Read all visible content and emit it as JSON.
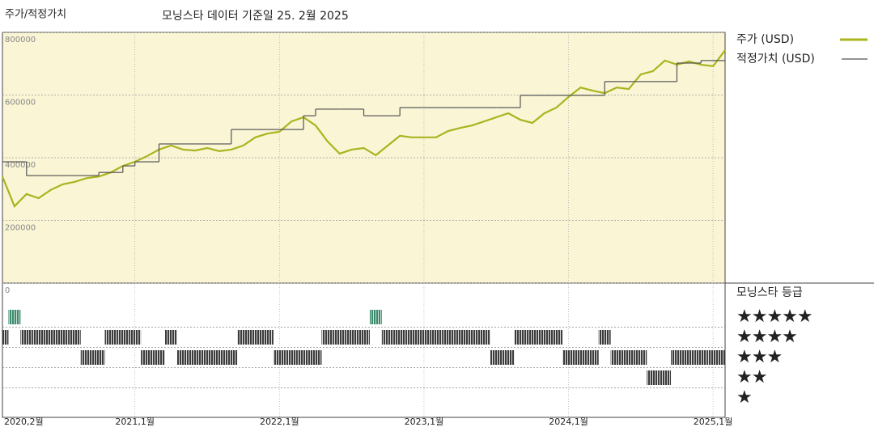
{
  "chart_data": [
    {
      "type": "line",
      "title": "주가/적정가치",
      "subtitle": "모닝스타 데이터 기준일 25. 2월 2025",
      "x": [
        "2020-02",
        "2020-03",
        "2020-04",
        "2020-05",
        "2020-06",
        "2020-07",
        "2020-08",
        "2020-09",
        "2020-10",
        "2020-11",
        "2020-12",
        "2021-01",
        "2021-02",
        "2021-03",
        "2021-04",
        "2021-05",
        "2021-06",
        "2021-07",
        "2021-08",
        "2021-09",
        "2021-10",
        "2021-11",
        "2021-12",
        "2022-01",
        "2022-02",
        "2022-03",
        "2022-04",
        "2022-05",
        "2022-06",
        "2022-07",
        "2022-08",
        "2022-09",
        "2022-10",
        "2022-11",
        "2022-12",
        "2023-01",
        "2023-02",
        "2023-03",
        "2023-04",
        "2023-05",
        "2023-06",
        "2023-07",
        "2023-08",
        "2023-09",
        "2023-10",
        "2023-11",
        "2023-12",
        "2024-01",
        "2024-02",
        "2024-03",
        "2024-04",
        "2024-05",
        "2024-06",
        "2024-07",
        "2024-08",
        "2024-09",
        "2024-10",
        "2024-11",
        "2024-12",
        "2025-01",
        "2025-02"
      ],
      "xticks": [
        {
          "value": "2020-02",
          "label": "2020,2월"
        },
        {
          "value": "2021-01",
          "label": "2021,1월"
        },
        {
          "value": "2022-01",
          "label": "2022,1월"
        },
        {
          "value": "2023-01",
          "label": "2023,1월"
        },
        {
          "value": "2024-01",
          "label": "2024,1월"
        },
        {
          "value": "2025-01",
          "label": "2025,1월"
        }
      ],
      "series": [
        {
          "name": "주가 (USD)",
          "color": "#aab41e",
          "style": "line",
          "values": [
            340000,
            245000,
            284000,
            271000,
            297000,
            315000,
            323000,
            335000,
            340000,
            353000,
            374000,
            387000,
            405000,
            426000,
            439000,
            426000,
            423000,
            431000,
            421000,
            426000,
            439000,
            465000,
            477000,
            483000,
            516000,
            529000,
            503000,
            452000,
            413000,
            426000,
            431000,
            408000,
            439000,
            470000,
            465000,
            465000,
            465000,
            485000,
            495000,
            503000,
            516000,
            529000,
            542000,
            521000,
            511000,
            542000,
            560000,
            594000,
            624000,
            614000,
            606000,
            624000,
            619000,
            666000,
            676000,
            710000,
            697000,
            707000,
            697000,
            692000,
            743000
          ]
        },
        {
          "name": "적정가치 (USD)",
          "color": "#555555",
          "style": "step",
          "values": [
            387000,
            387000,
            343000,
            343000,
            343000,
            343000,
            343000,
            343000,
            353000,
            353000,
            374000,
            387000,
            387000,
            444000,
            444000,
            444000,
            444000,
            444000,
            444000,
            490000,
            490000,
            490000,
            490000,
            490000,
            490000,
            534000,
            555000,
            555000,
            555000,
            555000,
            534000,
            534000,
            534000,
            560000,
            560000,
            560000,
            560000,
            560000,
            560000,
            560000,
            560000,
            560000,
            560000,
            599000,
            599000,
            599000,
            599000,
            599000,
            599000,
            599000,
            643000,
            643000,
            643000,
            643000,
            643000,
            643000,
            702000,
            702000,
            710000,
            710000,
            710000
          ]
        }
      ],
      "ylim": [
        0,
        800000
      ],
      "yticks": [
        0,
        200000,
        400000,
        600000,
        800000
      ],
      "grid": true,
      "background": "#f9f5d5"
    },
    {
      "type": "rating",
      "title": "모닝스타 등급",
      "levels": [
        "★",
        "★★",
        "★★★",
        "★★★★",
        "★★★★★"
      ],
      "values": [
        4,
        5,
        4,
        4,
        4,
        4,
        4,
        3,
        3,
        4,
        4,
        4,
        3,
        3,
        4,
        3,
        3,
        3,
        3,
        3,
        4,
        4,
        4,
        3,
        3,
        3,
        3,
        4,
        4,
        4,
        4,
        5,
        4,
        4,
        4,
        4,
        4,
        4,
        4,
        4,
        4,
        3,
        3,
        4,
        4,
        4,
        4,
        3,
        3,
        3,
        4,
        3,
        3,
        3,
        2,
        2,
        3,
        3,
        3,
        3,
        3
      ],
      "color": "#3c3c3c",
      "highlight_color": "#3d8a6c"
    }
  ]
}
